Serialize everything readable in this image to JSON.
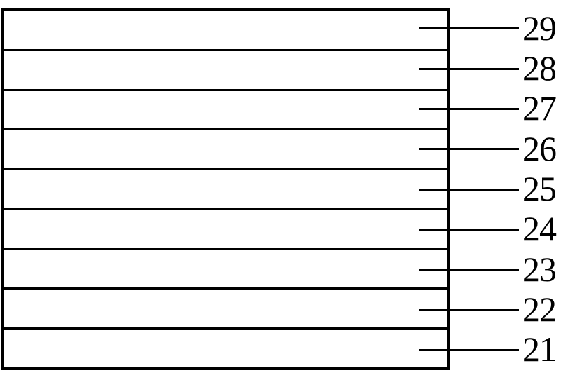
{
  "figure": {
    "kind": "layer-stack-diagram",
    "colors": {
      "line": "#000000",
      "background": "#ffffff",
      "label": "#000000"
    },
    "layers": [
      {
        "label": "29"
      },
      {
        "label": "28"
      },
      {
        "label": "27"
      },
      {
        "label": "26"
      },
      {
        "label": "25"
      },
      {
        "label": "24"
      },
      {
        "label": "23"
      },
      {
        "label": "22"
      },
      {
        "label": "21"
      }
    ]
  }
}
